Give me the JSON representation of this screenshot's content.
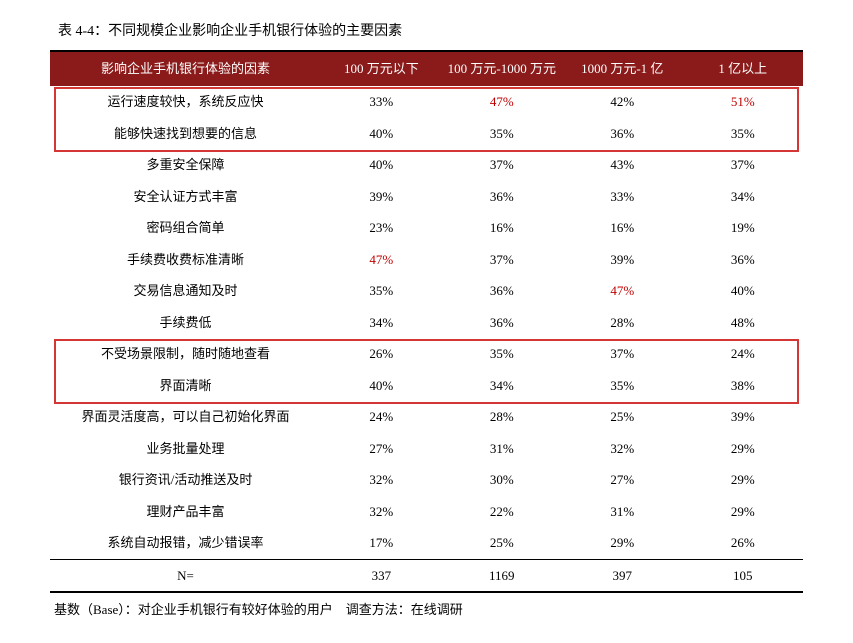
{
  "caption": "表 4-4：不同规模企业影响企业手机银行体验的主要因素",
  "header": {
    "factor": "影响企业手机银行体验的因素",
    "c1": "100 万元以下",
    "c2": "100 万元-1000 万元",
    "c3": "1000 万元-1 亿",
    "c4": "1 亿以上"
  },
  "rows": [
    {
      "label": "运行速度较快，系统反应快",
      "v": [
        "33%",
        "47%",
        "42%",
        "51%"
      ],
      "hl": [
        false,
        true,
        false,
        true
      ]
    },
    {
      "label": "能够快速找到想要的信息",
      "v": [
        "40%",
        "35%",
        "36%",
        "35%"
      ],
      "hl": [
        false,
        false,
        false,
        false
      ]
    },
    {
      "label": "多重安全保障",
      "v": [
        "40%",
        "37%",
        "43%",
        "37%"
      ],
      "hl": [
        false,
        false,
        false,
        false
      ]
    },
    {
      "label": "安全认证方式丰富",
      "v": [
        "39%",
        "36%",
        "33%",
        "34%"
      ],
      "hl": [
        false,
        false,
        false,
        false
      ]
    },
    {
      "label": "密码组合简单",
      "v": [
        "23%",
        "16%",
        "16%",
        "19%"
      ],
      "hl": [
        false,
        false,
        false,
        false
      ]
    },
    {
      "label": "手续费收费标准清晰",
      "v": [
        "47%",
        "37%",
        "39%",
        "36%"
      ],
      "hl": [
        true,
        false,
        false,
        false
      ]
    },
    {
      "label": "交易信息通知及时",
      "v": [
        "35%",
        "36%",
        "47%",
        "40%"
      ],
      "hl": [
        false,
        false,
        true,
        false
      ]
    },
    {
      "label": "手续费低",
      "v": [
        "34%",
        "36%",
        "28%",
        "48%"
      ],
      "hl": [
        false,
        false,
        false,
        false
      ]
    },
    {
      "label": "不受场景限制，随时随地查看",
      "v": [
        "26%",
        "35%",
        "37%",
        "24%"
      ],
      "hl": [
        false,
        false,
        false,
        false
      ]
    },
    {
      "label": "界面清晰",
      "v": [
        "40%",
        "34%",
        "35%",
        "38%"
      ],
      "hl": [
        false,
        false,
        false,
        false
      ]
    },
    {
      "label": "界面灵活度高，可以自己初始化界面",
      "v": [
        "24%",
        "28%",
        "25%",
        "39%"
      ],
      "hl": [
        false,
        false,
        false,
        false
      ]
    },
    {
      "label": "业务批量处理",
      "v": [
        "27%",
        "31%",
        "32%",
        "29%"
      ],
      "hl": [
        false,
        false,
        false,
        false
      ]
    },
    {
      "label": "银行资讯/活动推送及时",
      "v": [
        "32%",
        "30%",
        "27%",
        "29%"
      ],
      "hl": [
        false,
        false,
        false,
        false
      ]
    },
    {
      "label": "理财产品丰富",
      "v": [
        "32%",
        "22%",
        "31%",
        "29%"
      ],
      "hl": [
        false,
        false,
        false,
        false
      ]
    },
    {
      "label": "系统自动报错，减少错误率",
      "v": [
        "17%",
        "25%",
        "29%",
        "26%"
      ],
      "hl": [
        false,
        false,
        false,
        false
      ]
    }
  ],
  "sumrow": {
    "label": "N=",
    "v": [
      "337",
      "1169",
      "397",
      "105"
    ]
  },
  "footnote": "基数（Base）：对企业手机银行有较好体验的用户　调查方法：在线调研",
  "colors": {
    "header_bg": "#8b1a1a",
    "header_fg": "#ffffff",
    "highlight": "#c00000",
    "box_border": "#d43535",
    "text": "#000000"
  },
  "highlight_boxes": [
    {
      "top_row": 0,
      "bottom_row": 1
    },
    {
      "top_row": 8,
      "bottom_row": 9
    }
  ]
}
